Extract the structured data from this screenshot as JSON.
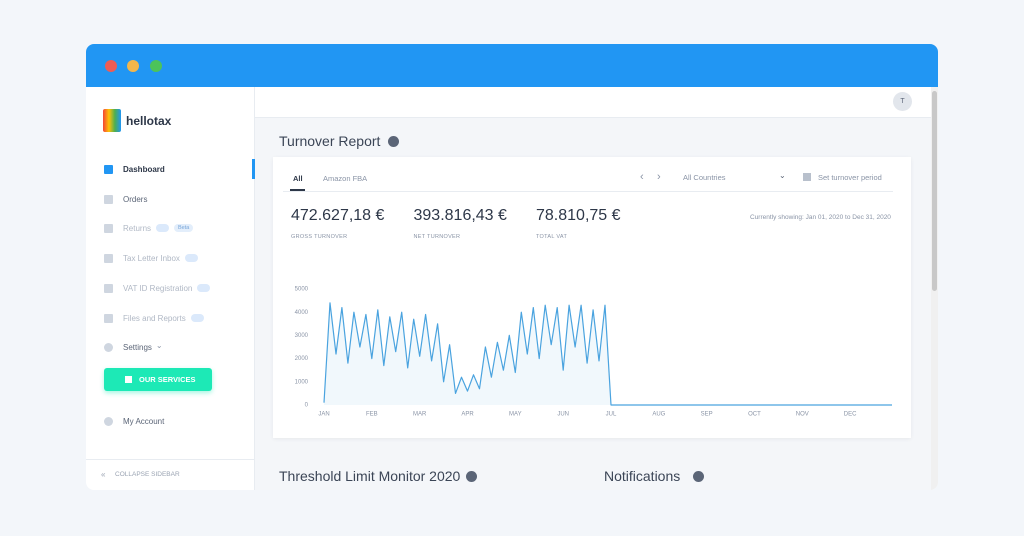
{
  "sidebar": {
    "brand": "hellotax",
    "menu": [
      {
        "label": "Dashboard"
      },
      {
        "label": "Orders"
      },
      {
        "label": "Returns",
        "badge": "Beta"
      },
      {
        "label": "Tax Letter Inbox"
      },
      {
        "label": "VAT ID Registration"
      },
      {
        "label": "Files and Reports"
      },
      {
        "label": "Settings"
      }
    ],
    "button": "OUR SERVICES",
    "account": "My Account",
    "collapse": "COLLAPSE SIDEBAR"
  },
  "avatar": "T",
  "report": {
    "title": "Turnover Report",
    "tabs": [
      "All",
      "Amazon FBA"
    ],
    "country": "All Countries",
    "period": "Set turnover period",
    "showing": "Currently showing: Jan 01, 2020 to Dec 31, 2020",
    "kpis": [
      {
        "value": "472.627,18 €",
        "label": "GROSS TURNOVER"
      },
      {
        "value": "393.816,43 €",
        "label": "NET TURNOVER"
      },
      {
        "value": "78.810,75 €",
        "label": "TOTAL VAT"
      }
    ]
  },
  "chart_data": {
    "type": "line",
    "categories": [
      "JAN",
      null,
      null,
      null,
      null,
      null,
      null,
      null,
      "FEB",
      null,
      null,
      null,
      null,
      null,
      null,
      null,
      "MAR",
      null,
      null,
      null,
      null,
      null,
      null,
      null,
      "APR",
      null,
      null,
      null,
      null,
      null,
      null,
      null,
      "MAY",
      null,
      null,
      null,
      null,
      null,
      null,
      null,
      "JUN",
      null,
      null,
      null,
      null,
      null,
      null,
      null,
      "JUL",
      null,
      null,
      null,
      null,
      null,
      null,
      null,
      "AUG",
      null,
      null,
      null,
      null,
      null,
      null,
      null,
      "SEP",
      null,
      null,
      null,
      null,
      null,
      null,
      null,
      "OCT",
      null,
      null,
      null,
      null,
      null,
      null,
      null,
      "NOV",
      null,
      null,
      null,
      null,
      null,
      null,
      null,
      "DEC",
      null,
      null,
      null,
      null,
      null,
      null,
      null
    ],
    "series": [
      {
        "name": "Turnover",
        "color": "#4aa3df",
        "values": [
          100,
          4400,
          2200,
          4200,
          1800,
          4000,
          2500,
          3900,
          2000,
          4100,
          1700,
          3800,
          2300,
          4000,
          1600,
          3700,
          2100,
          3900,
          1900,
          3500,
          1000,
          2600,
          500,
          1200,
          600,
          1300,
          700,
          2500,
          1200,
          2700,
          1500,
          3000,
          1400,
          4000,
          2200,
          4200,
          2000,
          4300,
          2600,
          4200,
          1500,
          4300,
          2500,
          4300,
          1800,
          4100,
          1900,
          4300,
          0,
          0,
          0,
          0,
          0,
          0,
          0,
          0,
          0,
          0,
          0,
          0,
          0,
          0,
          0,
          0,
          0,
          0,
          0,
          0,
          0,
          0,
          0,
          0,
          0,
          0,
          0,
          0,
          0,
          0,
          0,
          0,
          0,
          0,
          0,
          0,
          0,
          0,
          0,
          0,
          0,
          0,
          0,
          0,
          0,
          0,
          0,
          0
        ]
      }
    ],
    "ylim": [
      0,
      5000
    ],
    "yticks": [
      0,
      1000,
      2000,
      3000,
      4000,
      5000
    ]
  },
  "sections": [
    {
      "title": "Threshold Limit Monitor 2020"
    },
    {
      "title": "Notifications"
    }
  ]
}
